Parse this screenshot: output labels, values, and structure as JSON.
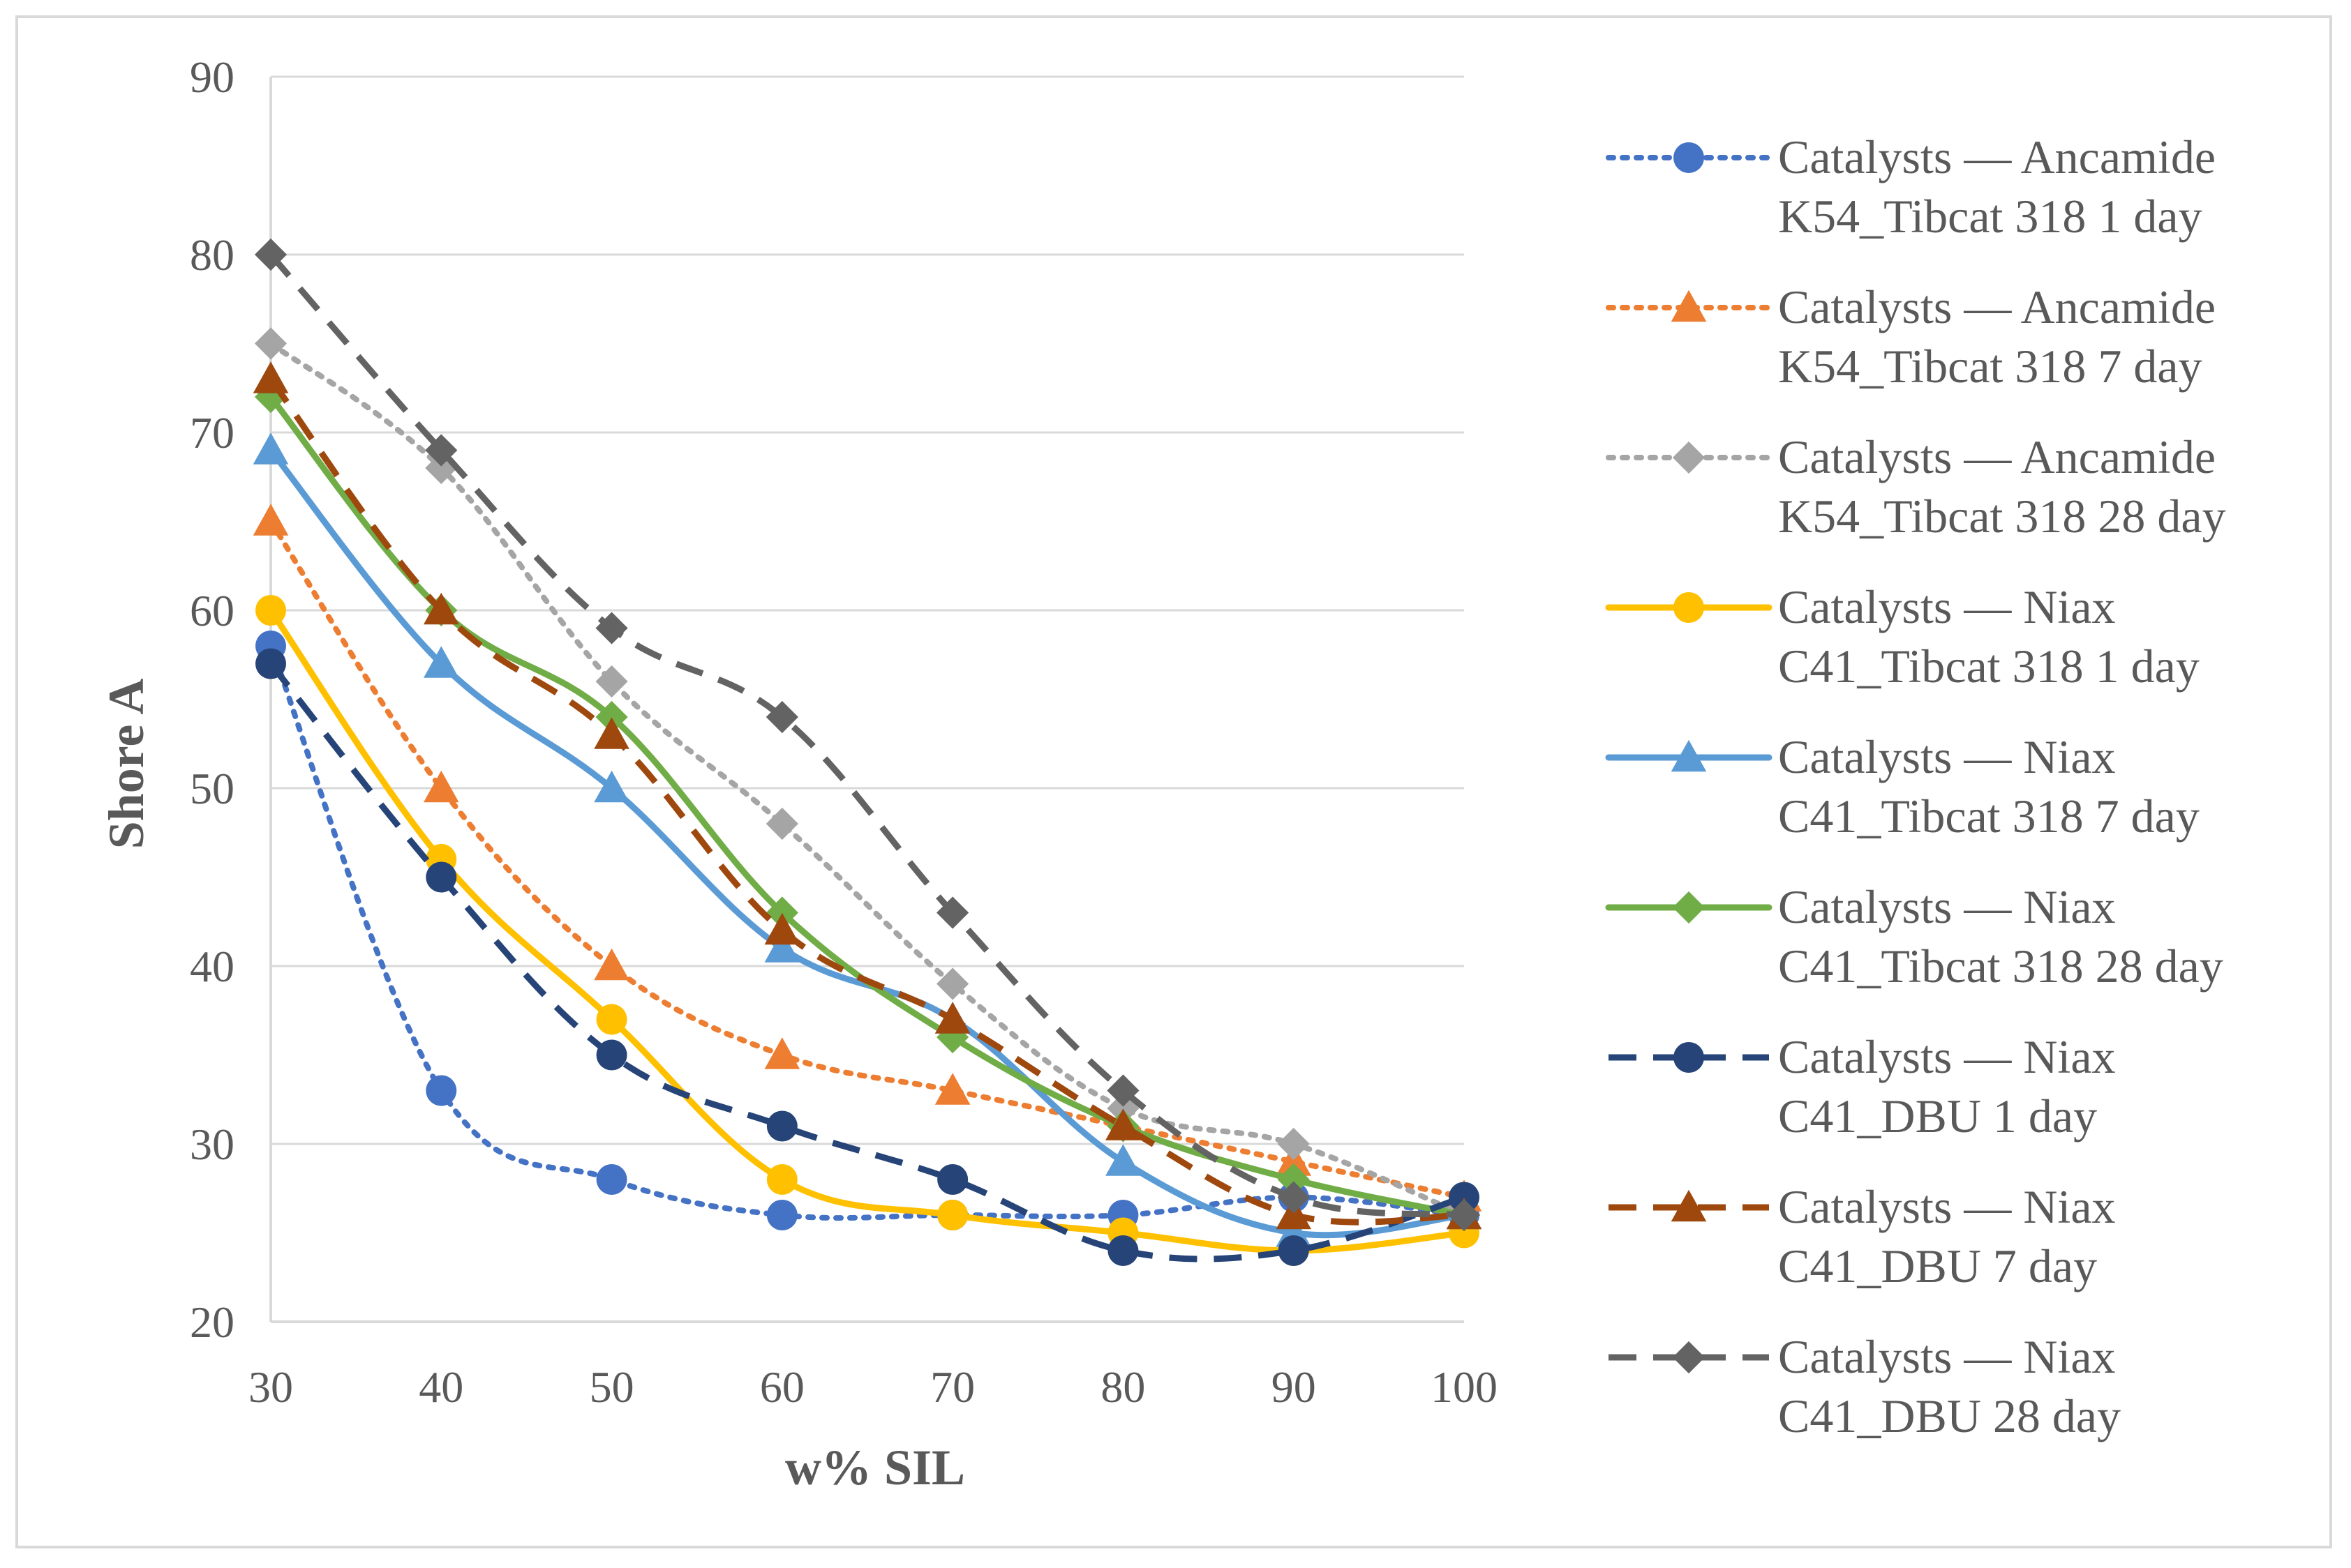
{
  "chart_data": {
    "type": "line",
    "title": "",
    "xlabel": "w% SIL",
    "ylabel": "Shore A",
    "x": [
      30,
      40,
      50,
      60,
      70,
      80,
      90,
      100
    ],
    "xlim": [
      30,
      100
    ],
    "ylim": [
      20,
      90
    ],
    "yticks": [
      20,
      30,
      40,
      50,
      60,
      70,
      80,
      90
    ],
    "grid": true,
    "legend_position": "right",
    "series": [
      {
        "name_line1": "Catalysts — Ancamide",
        "name_line2": "K54_Tibcat 318 1 day",
        "values": [
          58,
          33,
          28,
          26,
          26,
          26,
          27,
          26
        ],
        "color": "#4472c4",
        "dash": "dot",
        "marker": "circle"
      },
      {
        "name_line1": "Catalysts — Ancamide",
        "name_line2": "K54_Tibcat 318 7 day",
        "values": [
          65,
          50,
          40,
          35,
          33,
          31,
          29,
          27
        ],
        "color": "#ed7d31",
        "dash": "dot",
        "marker": "triangle"
      },
      {
        "name_line1": "Catalysts — Ancamide",
        "name_line2": "K54_Tibcat 318 28 day",
        "values": [
          75,
          68,
          56,
          48,
          39,
          32,
          30,
          26
        ],
        "color": "#a5a5a5",
        "dash": "dot",
        "marker": "diamond"
      },
      {
        "name_line1": "Catalysts — Niax",
        "name_line2": "C41_Tibcat 318 1 day",
        "values": [
          60,
          46,
          37,
          28,
          26,
          25,
          24,
          25
        ],
        "color": "#ffc000",
        "dash": "solid",
        "marker": "circle"
      },
      {
        "name_line1": "Catalysts — Niax",
        "name_line2": "C41_Tibcat 318 7 day",
        "values": [
          69,
          57,
          50,
          41,
          37,
          29,
          25,
          26
        ],
        "color": "#5b9bd5",
        "dash": "solid",
        "marker": "triangle"
      },
      {
        "name_line1": "Catalysts — Niax",
        "name_line2": "C41_Tibcat 318 28 day",
        "values": [
          72,
          60,
          54,
          43,
          36,
          31,
          28,
          26
        ],
        "color": "#70ad47",
        "dash": "solid",
        "marker": "diamond"
      },
      {
        "name_line1": "Catalysts — Niax",
        "name_line2": "C41_DBU 1 day",
        "values": [
          57,
          45,
          35,
          31,
          28,
          24,
          24,
          27
        ],
        "color": "#264478",
        "dash": "dash",
        "marker": "circle"
      },
      {
        "name_line1": "Catalysts — Niax",
        "name_line2": "C41_DBU 7 day",
        "values": [
          73,
          60,
          53,
          42,
          37,
          31,
          26,
          26
        ],
        "color": "#9e480e",
        "dash": "dash",
        "marker": "triangle"
      },
      {
        "name_line1": "Catalysts — Niax",
        "name_line2": "C41_DBU 28 day",
        "values": [
          80,
          69,
          59,
          54,
          43,
          33,
          27,
          26
        ],
        "color": "#636363",
        "dash": "dash",
        "marker": "diamond"
      }
    ]
  }
}
